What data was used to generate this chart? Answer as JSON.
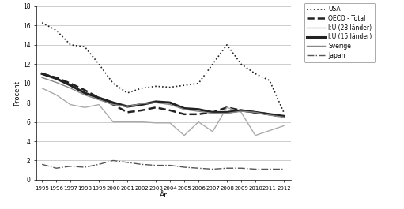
{
  "years": [
    1995,
    1996,
    1997,
    1998,
    1999,
    2000,
    2001,
    2002,
    2003,
    2004,
    2005,
    2006,
    2007,
    2008,
    2009,
    2010,
    2011,
    2012
  ],
  "usa": [
    16.3,
    15.5,
    14.0,
    13.8,
    12.0,
    10.0,
    9.0,
    9.5,
    9.7,
    9.6,
    9.8,
    10.0,
    12.0,
    14.0,
    12.0,
    11.0,
    10.3,
    7.0
  ],
  "oecd": [
    11.0,
    10.6,
    10.0,
    9.3,
    8.5,
    7.8,
    7.0,
    7.2,
    7.5,
    7.2,
    6.8,
    6.8,
    7.0,
    7.5,
    7.2,
    7.0,
    6.8,
    6.5
  ],
  "eu28": [
    9.5,
    8.8,
    7.8,
    7.5,
    7.8,
    6.0,
    6.0,
    6.0,
    5.9,
    5.9,
    4.6,
    6.0,
    5.0,
    7.5,
    7.0,
    4.6,
    5.1,
    5.6
  ],
  "eu15": [
    11.0,
    10.5,
    9.8,
    9.0,
    8.5,
    8.0,
    7.6,
    7.8,
    8.1,
    8.0,
    7.4,
    7.3,
    7.0,
    7.0,
    7.2,
    7.0,
    6.8,
    6.6
  ],
  "sverige": [
    10.6,
    10.1,
    9.5,
    8.8,
    8.3,
    7.8,
    7.6,
    7.9,
    8.0,
    7.8,
    7.3,
    7.1,
    6.9,
    6.9,
    7.1,
    7.0,
    6.7,
    6.5
  ],
  "japan": [
    1.6,
    1.2,
    1.4,
    1.3,
    1.6,
    2.0,
    1.8,
    1.6,
    1.5,
    1.5,
    1.3,
    1.2,
    1.1,
    1.2,
    1.2,
    1.1,
    1.1,
    1.1
  ],
  "ylabel": "Procent",
  "xlabel": "År",
  "ylim": [
    0,
    18
  ],
  "yticks": [
    0,
    2,
    4,
    6,
    8,
    10,
    12,
    14,
    16,
    18
  ],
  "legend_labels": [
    "USA",
    "OECD - Total",
    "I:U (28 länder)",
    "I:U (15 länder)",
    "Sverige",
    "Japan"
  ]
}
